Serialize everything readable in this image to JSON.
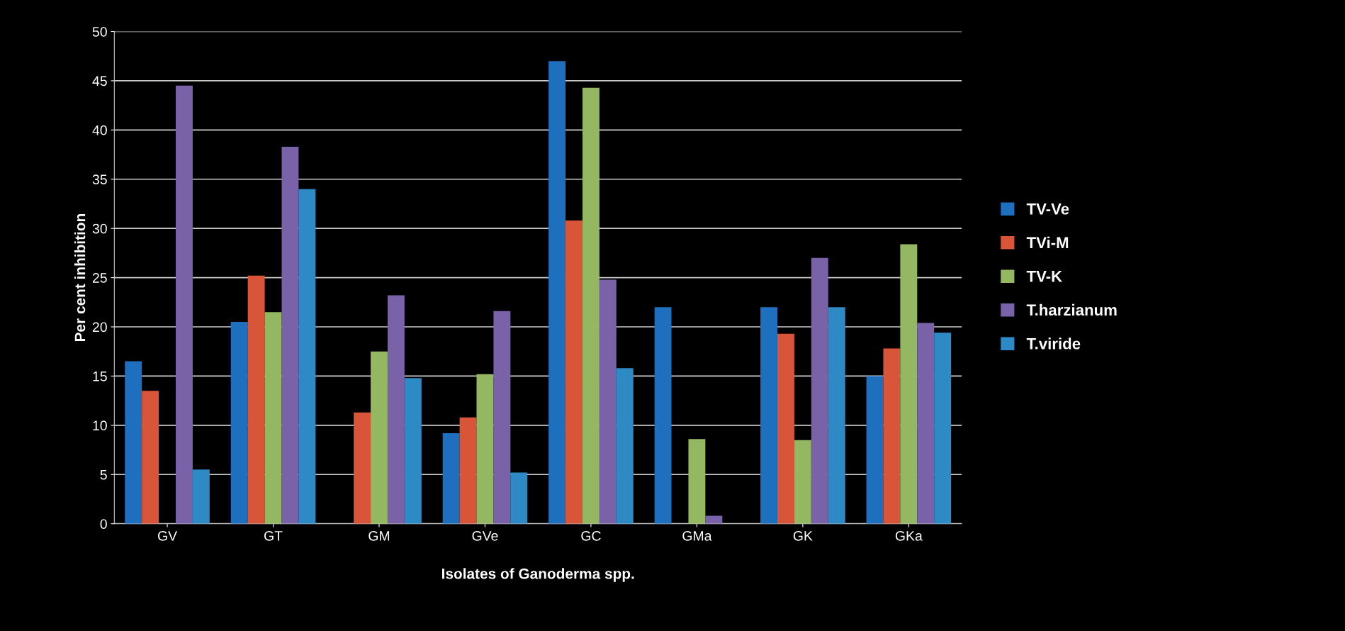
{
  "chart_data": {
    "type": "bar",
    "xlabel": "Isolates of Ganoderma spp.",
    "ylabel": "Per cent inhibition",
    "categories": [
      "GV",
      "GT",
      "GM",
      "GVe",
      "GC",
      "GMa",
      "GK",
      "GKa"
    ],
    "series": [
      {
        "name": "TV-Ve",
        "color": "#1f6fbf",
        "values": [
          16.5,
          20.5,
          0,
          9.2,
          47,
          22,
          22,
          15
        ]
      },
      {
        "name": "TVi-M",
        "color": "#d9553a",
        "values": [
          13.5,
          25.2,
          11.3,
          10.8,
          30.8,
          0,
          19.3,
          17.8
        ]
      },
      {
        "name": "TV-K",
        "color": "#94b861",
        "values": [
          0,
          21.5,
          17.5,
          15.2,
          44.3,
          8.6,
          8.5,
          28.4
        ]
      },
      {
        "name": "T.harzianum",
        "color": "#7a62a8",
        "values": [
          44.5,
          38.3,
          23.2,
          21.6,
          24.8,
          0.8,
          27,
          20.4
        ]
      },
      {
        "name": "T.viride",
        "color": "#2e8ac4",
        "values": [
          5.5,
          34,
          14.8,
          5.2,
          15.8,
          0,
          22,
          19.4
        ]
      }
    ],
    "ylim": [
      0,
      50
    ],
    "yticks": [
      0,
      5,
      10,
      15,
      20,
      25,
      30,
      35,
      40,
      45,
      50
    ],
    "grid": "y",
    "legend": "right"
  }
}
